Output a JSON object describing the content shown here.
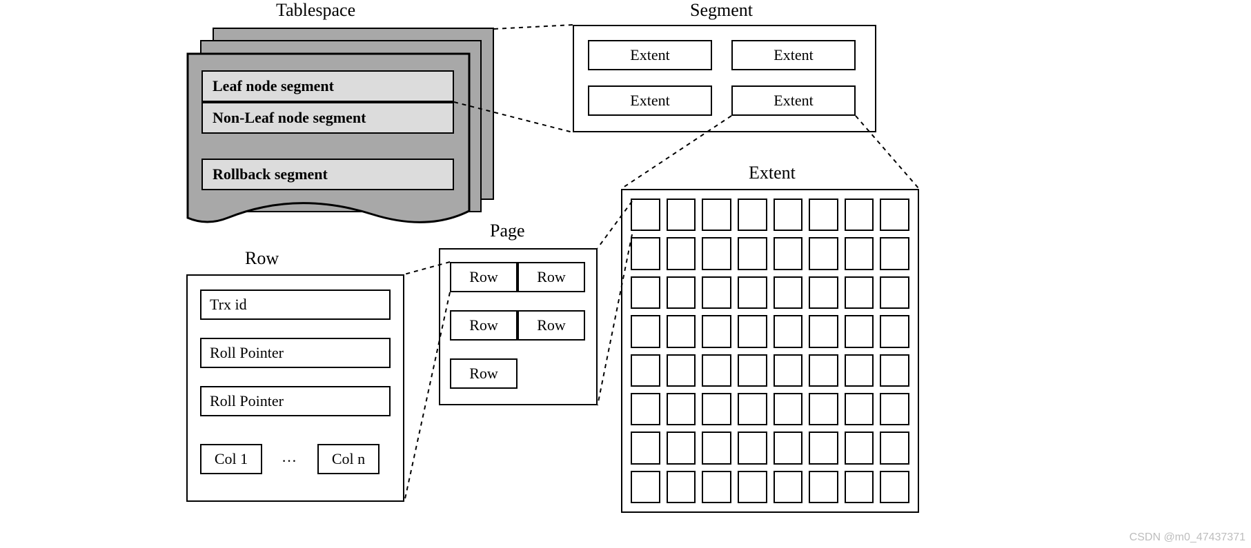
{
  "labels": {
    "tablespace": "Tablespace",
    "segment": "Segment",
    "extent": "Extent",
    "page": "Page",
    "row": "Row"
  },
  "tablespace": {
    "segments": [
      "Leaf node segment",
      "Non-Leaf node segment",
      "Rollback segment"
    ],
    "stack_fill": "#a8a8a8",
    "row_fill": "#dcdcdc",
    "border": "#000000"
  },
  "segment": {
    "extents": [
      "Extent",
      "Extent",
      "Extent",
      "Extent"
    ],
    "border": "#000000",
    "fill": "#ffffff"
  },
  "extent": {
    "grid_rows": 8,
    "grid_cols": 8,
    "border": "#000000",
    "fill": "#ffffff",
    "cell_fill": "#ffffff"
  },
  "page": {
    "rows": [
      "Row",
      "Row",
      "Row",
      "Row",
      "Row"
    ],
    "border": "#000000",
    "fill": "#ffffff"
  },
  "row": {
    "fields": [
      "Trx id",
      "Roll Pointer",
      "Roll Pointer"
    ],
    "cols": {
      "first": "Col 1",
      "ellipsis": "…",
      "last": "Col n"
    },
    "border": "#000000",
    "fill": "#ffffff"
  },
  "style": {
    "title_fontsize": 26,
    "field_fontsize": 22,
    "line_color": "#000000",
    "dash": "6 6",
    "background": "#ffffff"
  },
  "watermark": "CSDN @m0_47437371"
}
